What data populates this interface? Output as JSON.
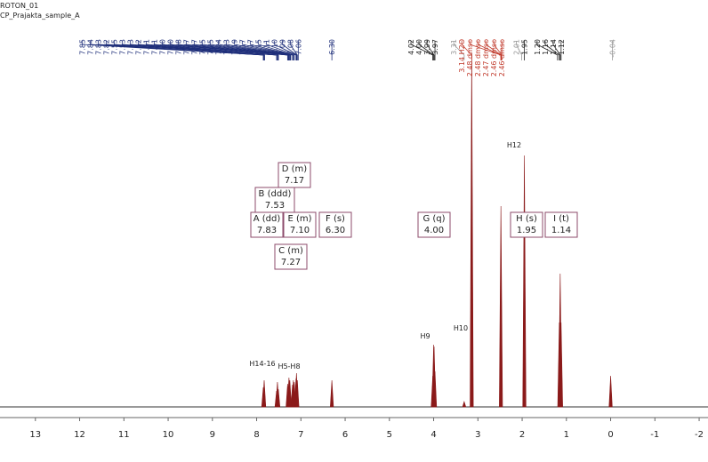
{
  "header": {
    "lines": [
      "ROTON_01",
      "CP_Prajakta_sample_A"
    ]
  },
  "chart_data": {
    "type": "peaks",
    "color": "#8b1a1a",
    "xlim": [
      13.8,
      -2.2
    ],
    "xticks": [
      13,
      12,
      11,
      10,
      9,
      8,
      7,
      6,
      5,
      4,
      3,
      2,
      1,
      0,
      -1,
      -2
    ],
    "ylim": [
      0,
      400
    ],
    "x": [
      7.85,
      7.83,
      7.55,
      7.53,
      7.51,
      7.3,
      7.27,
      7.25,
      7.19,
      7.17,
      7.15,
      7.11,
      7.1,
      7.08,
      6.3,
      4.02,
      4.0,
      3.99,
      3.97,
      3.31,
      3.14,
      2.48,
      1.95,
      1.16,
      1.14,
      1.12,
      0
    ],
    "values": [
      22,
      30,
      18,
      28,
      20,
      26,
      33,
      30,
      25,
      30,
      28,
      32,
      38,
      30,
      30,
      35,
      70,
      68,
      40,
      6,
      398,
      226,
      283,
      95,
      150,
      95,
      35
    ],
    "peak_label_groups": [
      {
        "color": "#1f2f7a",
        "labels": [
          {
            "value": 7.85,
            "label": "7.85"
          },
          {
            "value": 7.84,
            "label": "7.84"
          },
          {
            "value": 7.83,
            "label": "7.83"
          },
          {
            "value": 7.82,
            "label": "7.82"
          },
          {
            "value": 7.55,
            "label": "7.55"
          },
          {
            "value": 7.53,
            "label": "7.53"
          },
          {
            "value": 7.53,
            "label": "7.53"
          },
          {
            "value": 7.52,
            "label": "7.52"
          },
          {
            "value": 7.51,
            "label": "7.51"
          },
          {
            "value": 7.51,
            "label": "7.51"
          },
          {
            "value": 7.3,
            "label": "7.30"
          },
          {
            "value": 7.3,
            "label": "7.30"
          },
          {
            "value": 7.28,
            "label": "7.28"
          },
          {
            "value": 7.27,
            "label": "7.27"
          },
          {
            "value": 7.27,
            "label": "7.27"
          },
          {
            "value": 7.25,
            "label": "7.25"
          },
          {
            "value": 7.25,
            "label": "7.25"
          },
          {
            "value": 7.24,
            "label": "7.24"
          },
          {
            "value": 7.23,
            "label": "7.23"
          },
          {
            "value": 7.19,
            "label": "7.19"
          },
          {
            "value": 7.17,
            "label": "7.17"
          },
          {
            "value": 7.17,
            "label": "7.17"
          },
          {
            "value": 7.15,
            "label": "7.15"
          },
          {
            "value": 7.11,
            "label": "7.11"
          },
          {
            "value": 7.1,
            "label": "7.10"
          },
          {
            "value": 7.09,
            "label": "7.09"
          },
          {
            "value": 7.08,
            "label": "7.08"
          },
          {
            "value": 7.06,
            "label": "7.06"
          },
          {
            "value": 6.3,
            "label": "6.30"
          }
        ]
      },
      {
        "color": "#222222",
        "labels": [
          {
            "value": 4.02,
            "label": "4.02"
          },
          {
            "value": 4.0,
            "label": "4.00"
          },
          {
            "value": 3.99,
            "label": "3.99"
          },
          {
            "value": 3.97,
            "label": "3.97"
          }
        ]
      },
      {
        "color": "#999999",
        "labels": [
          {
            "value": 3.31,
            "label": "3.31"
          }
        ]
      },
      {
        "color": "#c0392b",
        "labels": [
          {
            "value": 3.14,
            "label": "3.14 H2O"
          },
          {
            "value": 2.48,
            "label": "2.48 dmso"
          },
          {
            "value": 2.48,
            "label": "2.48 dmso"
          },
          {
            "value": 2.47,
            "label": "2.47 dmso"
          },
          {
            "value": 2.46,
            "label": "2.46 dmso"
          },
          {
            "value": 2.46,
            "label": "2.46 dmso"
          }
        ]
      },
      {
        "color": "#999999",
        "labels": [
          {
            "value": 2.01,
            "label": "2.01"
          }
        ]
      },
      {
        "color": "#222222",
        "labels": [
          {
            "value": 1.95,
            "label": "1.95"
          },
          {
            "value": 1.2,
            "label": "1.20"
          },
          {
            "value": 1.16,
            "label": "1.16"
          },
          {
            "value": 1.14,
            "label": "1.14"
          },
          {
            "value": 1.12,
            "label": "1.12"
          }
        ]
      },
      {
        "color": "#999999",
        "labels": [
          {
            "value": -0.04,
            "label": "-0.04"
          }
        ]
      }
    ],
    "multiplets": [
      {
        "label": "D (m)",
        "shift": {
          "value": 7.17,
          "label": "7.17"
        }
      },
      {
        "label": "B (ddd)",
        "shift": {
          "value": 7.53,
          "label": "7.53"
        }
      },
      {
        "label": "A (dd)",
        "shift": {
          "value": 7.83,
          "label": "7.83"
        }
      },
      {
        "label": "E (m)",
        "shift": {
          "value": 7.1,
          "label": "7.10"
        }
      },
      {
        "label": "F (s)",
        "shift": {
          "value": 6.3,
          "label": "6.30"
        }
      },
      {
        "label": "C (m)",
        "shift": {
          "value": 7.27,
          "label": "7.27"
        }
      },
      {
        "label": "G (q)",
        "shift": {
          "value": 4.0,
          "label": "4.00"
        }
      },
      {
        "label": "H (s)",
        "shift": {
          "value": 1.95,
          "label": "1.95"
        }
      },
      {
        "label": "I (t)",
        "shift": {
          "value": 1.14,
          "label": "1.14"
        }
      }
    ],
    "annotations": [
      "H14-16",
      "H5-H8",
      "H9",
      "H10",
      "H12"
    ]
  }
}
